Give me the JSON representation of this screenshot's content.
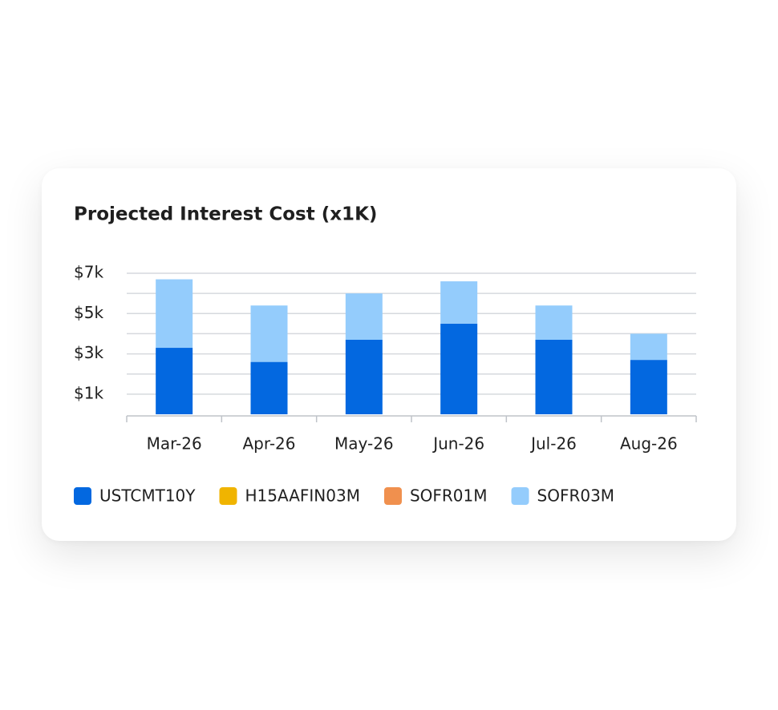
{
  "chart_data": {
    "type": "stacked_bar",
    "title": "Projected Interest Cost (x1K)",
    "categories": [
      "Mar-26",
      "Apr-26",
      "May-26",
      "Jun-26",
      "Jul-26",
      "Aug-26"
    ],
    "series": [
      {
        "name": "USTCMT10Y",
        "color": "#0368e0",
        "values": [
          3.3,
          2.6,
          3.7,
          4.5,
          3.7,
          2.7
        ]
      },
      {
        "name": "H15AAFIN03M",
        "color": "#f0b400",
        "values": [
          0,
          0,
          0,
          0,
          0,
          0
        ]
      },
      {
        "name": "SOFR01M",
        "color": "#f0904e",
        "values": [
          0,
          0,
          0,
          0,
          0,
          0
        ]
      },
      {
        "name": "SOFR03M",
        "color": "#94ccfc",
        "values": [
          3.4,
          2.8,
          2.3,
          2.1,
          1.7,
          1.3
        ]
      }
    ],
    "ylim": [
      0,
      7
    ],
    "yticks": [
      {
        "value": 1,
        "label": "$1k"
      },
      {
        "value": 3,
        "label": "$3k"
      },
      {
        "value": 5,
        "label": "$5k"
      },
      {
        "value": 7,
        "label": "$7k"
      }
    ],
    "minor_yticks": [
      2,
      4,
      6
    ],
    "grid": true,
    "legend": "bottom"
  }
}
